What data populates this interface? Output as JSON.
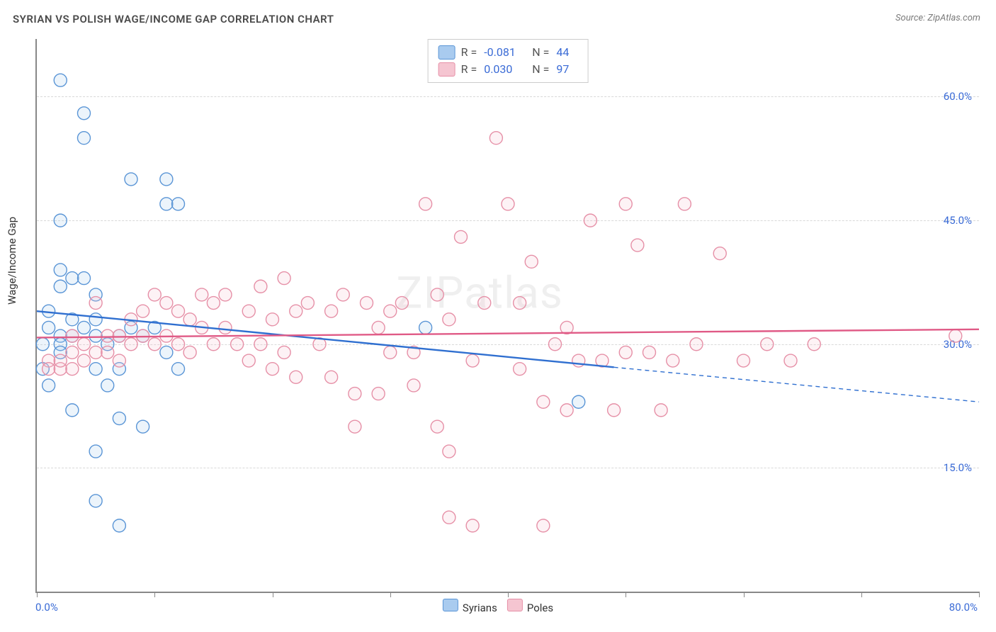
{
  "title": "SYRIAN VS POLISH WAGE/INCOME GAP CORRELATION CHART",
  "source": "Source: ZipAtlas.com",
  "ylabel": "Wage/Income Gap",
  "watermark": "ZIPatlas",
  "chart": {
    "type": "scatter",
    "xlim": [
      0,
      80
    ],
    "ylim": [
      0,
      67
    ],
    "x_ticks": [
      0,
      10,
      20,
      30,
      40,
      50,
      60,
      70,
      80
    ],
    "y_gridlines": [
      15,
      30,
      45,
      60
    ],
    "y_tick_labels": [
      "15.0%",
      "30.0%",
      "45.0%",
      "60.0%"
    ],
    "x_left_label": "0.0%",
    "x_right_label": "80.0%",
    "background_color": "#ffffff",
    "grid_color": "#d8d8d8",
    "axis_color": "#888888",
    "label_color": "#3a6bd6",
    "watermark_color": "rgba(120,120,120,0.12)",
    "marker_radius": 9,
    "marker_stroke_width": 1.4,
    "marker_fill_opacity": 0.22,
    "trend_line_width": 2.4,
    "series": [
      {
        "name": "Syrians",
        "color_stroke": "#5a95d6",
        "color_fill": "#a9cbef",
        "trend_color": "#2f6fd0",
        "R": "-0.081",
        "N": "44",
        "trend": {
          "x1": 0,
          "y1": 34,
          "x2": 49,
          "y2": 27.2,
          "dash_to_x": 80,
          "dash_to_y": 23
        },
        "points": [
          [
            2,
            62
          ],
          [
            4,
            58
          ],
          [
            4,
            55
          ],
          [
            2,
            45
          ],
          [
            11,
            50
          ],
          [
            11,
            47
          ],
          [
            12,
            47
          ],
          [
            8,
            50
          ],
          [
            2,
            39
          ],
          [
            3,
            38
          ],
          [
            4,
            38
          ],
          [
            2,
            37
          ],
          [
            5,
            36
          ],
          [
            1,
            34
          ],
          [
            1,
            32
          ],
          [
            2,
            31
          ],
          [
            2,
            30
          ],
          [
            2,
            29
          ],
          [
            3,
            33
          ],
          [
            3,
            31
          ],
          [
            4,
            32
          ],
          [
            5,
            31
          ],
          [
            5,
            33
          ],
          [
            6,
            30
          ],
          [
            7,
            31
          ],
          [
            8,
            32
          ],
          [
            9,
            31
          ],
          [
            10,
            32
          ],
          [
            11,
            29
          ],
          [
            12,
            27
          ],
          [
            5,
            27
          ],
          [
            6,
            25
          ],
          [
            7,
            27
          ],
          [
            1,
            25
          ],
          [
            0.5,
            27
          ],
          [
            0.5,
            30
          ],
          [
            5,
            17
          ],
          [
            5,
            11
          ],
          [
            7,
            8
          ],
          [
            7,
            21
          ],
          [
            9,
            20
          ],
          [
            33,
            32
          ],
          [
            46,
            23
          ],
          [
            3,
            22
          ]
        ]
      },
      {
        "name": "Poles",
        "color_stroke": "#e690a7",
        "color_fill": "#f5c5d1",
        "trend_color": "#e05a86",
        "R": "0.030",
        "N": "97",
        "trend": {
          "x1": 0,
          "y1": 30.8,
          "x2": 80,
          "y2": 31.8,
          "dash_to_x": 80,
          "dash_to_y": 31.8
        },
        "points": [
          [
            1,
            28
          ],
          [
            1,
            27
          ],
          [
            2,
            27
          ],
          [
            2,
            28
          ],
          [
            3,
            27
          ],
          [
            3,
            29
          ],
          [
            3,
            31
          ],
          [
            4,
            28
          ],
          [
            4,
            30
          ],
          [
            5,
            35
          ],
          [
            5,
            29
          ],
          [
            6,
            31
          ],
          [
            6,
            29
          ],
          [
            7,
            31
          ],
          [
            7,
            28
          ],
          [
            8,
            33
          ],
          [
            8,
            30
          ],
          [
            9,
            34
          ],
          [
            9,
            31
          ],
          [
            10,
            36
          ],
          [
            10,
            30
          ],
          [
            11,
            35
          ],
          [
            11,
            31
          ],
          [
            12,
            34
          ],
          [
            12,
            30
          ],
          [
            13,
            33
          ],
          [
            13,
            29
          ],
          [
            14,
            36
          ],
          [
            14,
            32
          ],
          [
            15,
            35
          ],
          [
            15,
            30
          ],
          [
            16,
            36
          ],
          [
            16,
            32
          ],
          [
            17,
            30
          ],
          [
            18,
            34
          ],
          [
            18,
            28
          ],
          [
            19,
            37
          ],
          [
            19,
            30
          ],
          [
            20,
            33
          ],
          [
            20,
            27
          ],
          [
            21,
            38
          ],
          [
            21,
            29
          ],
          [
            22,
            34
          ],
          [
            22,
            26
          ],
          [
            23,
            35
          ],
          [
            24,
            30
          ],
          [
            25,
            34
          ],
          [
            25,
            26
          ],
          [
            26,
            36
          ],
          [
            27,
            24
          ],
          [
            27,
            20
          ],
          [
            28,
            35
          ],
          [
            29,
            32
          ],
          [
            29,
            24
          ],
          [
            30,
            34
          ],
          [
            30,
            29
          ],
          [
            31,
            35
          ],
          [
            32,
            29
          ],
          [
            32,
            25
          ],
          [
            33,
            47
          ],
          [
            34,
            36
          ],
          [
            34,
            20
          ],
          [
            35,
            33
          ],
          [
            35,
            17
          ],
          [
            36,
            43
          ],
          [
            37,
            28
          ],
          [
            37,
            8
          ],
          [
            38,
            35
          ],
          [
            39,
            55
          ],
          [
            40,
            47
          ],
          [
            41,
            35
          ],
          [
            41,
            27
          ],
          [
            42,
            40
          ],
          [
            43,
            23
          ],
          [
            43,
            8
          ],
          [
            44,
            30
          ],
          [
            45,
            32
          ],
          [
            45,
            22
          ],
          [
            46,
            28
          ],
          [
            47,
            45
          ],
          [
            48,
            28
          ],
          [
            49,
            22
          ],
          [
            50,
            47
          ],
          [
            50,
            29
          ],
          [
            51,
            42
          ],
          [
            52,
            29
          ],
          [
            53,
            22
          ],
          [
            54,
            28
          ],
          [
            55,
            47
          ],
          [
            56,
            30
          ],
          [
            58,
            41
          ],
          [
            60,
            28
          ],
          [
            62,
            30
          ],
          [
            64,
            28
          ],
          [
            66,
            30
          ],
          [
            78,
            31
          ],
          [
            35,
            9
          ]
        ]
      }
    ]
  },
  "legend_bottom": [
    {
      "label": "Syrians",
      "stroke": "#5a95d6",
      "fill": "#a9cbef"
    },
    {
      "label": "Poles",
      "stroke": "#e690a7",
      "fill": "#f5c5d1"
    }
  ]
}
